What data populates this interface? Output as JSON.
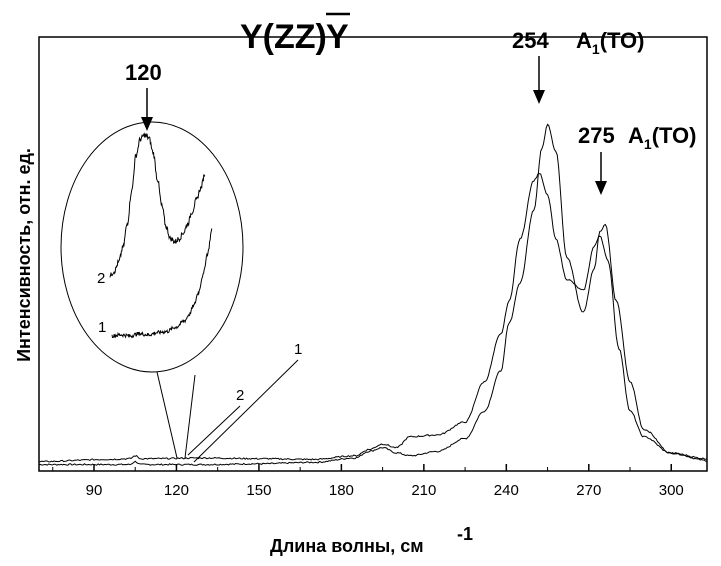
{
  "chart_data": {
    "type": "line",
    "title_main": "Y(ZZ)",
    "title_bar": "Y",
    "xlabel_main": "Длина волны, см",
    "xlabel_sup": "-1",
    "ylabel": "Интенсивность, отн. ед.",
    "xlim": [
      70,
      313
    ],
    "ylim": [
      0,
      1
    ],
    "xticks": [
      90,
      120,
      150,
      180,
      210,
      240,
      270,
      300
    ],
    "grid": false,
    "series": [
      {
        "name": "1",
        "x": [
          70,
          95,
          103,
          105,
          107,
          110,
          130,
          150,
          170,
          185,
          190,
          195,
          200,
          205,
          215,
          225,
          232,
          238,
          241,
          245,
          250,
          253,
          255,
          258,
          262,
          268,
          272,
          274,
          276,
          280,
          285,
          290,
          300,
          313
        ],
        "y": [
          0.004,
          0.004,
          0.004,
          0.012,
          0.004,
          0.004,
          0.004,
          0.006,
          0.01,
          0.022,
          0.04,
          0.05,
          0.036,
          0.028,
          0.04,
          0.075,
          0.15,
          0.26,
          0.39,
          0.5,
          0.7,
          0.87,
          0.935,
          0.86,
          0.57,
          0.42,
          0.54,
          0.64,
          0.66,
          0.45,
          0.23,
          0.1,
          0.035,
          0.015
        ]
      },
      {
        "name": "2",
        "x": [
          70,
          95,
          103,
          105,
          107,
          110,
          130,
          150,
          170,
          185,
          190,
          195,
          200,
          205,
          215,
          225,
          232,
          238,
          241,
          245,
          250,
          252,
          255,
          258,
          262,
          268,
          272,
          274,
          277,
          281,
          285,
          290,
          300,
          313
        ],
        "y": [
          0.012,
          0.018,
          0.02,
          0.028,
          0.02,
          0.02,
          0.022,
          0.02,
          0.018,
          0.028,
          0.045,
          0.06,
          0.05,
          0.08,
          0.085,
          0.12,
          0.23,
          0.36,
          0.45,
          0.62,
          0.78,
          0.8,
          0.74,
          0.62,
          0.51,
          0.48,
          0.6,
          0.63,
          0.56,
          0.32,
          0.15,
          0.08,
          0.035,
          0.02
        ]
      }
    ],
    "annotations": [
      {
        "text": "254",
        "label": "A",
        "sub": "1",
        "suffix": "(TO)"
      },
      {
        "text": "275",
        "label": "A",
        "sub": "1",
        "suffix": "(TO)"
      },
      {
        "text": "120"
      }
    ],
    "inset": {
      "curve_labels": [
        "2",
        "1"
      ],
      "series_2": {
        "x": [
          110,
          111,
          112,
          113,
          114,
          115,
          116,
          117,
          118,
          119,
          120,
          121,
          122,
          123,
          124,
          125,
          126,
          127,
          128,
          129,
          130,
          131,
          132
        ],
        "y": [
          0.05,
          0.08,
          0.14,
          0.24,
          0.4,
          0.62,
          0.86,
          0.97,
          1.0,
          0.98,
          0.88,
          0.7,
          0.52,
          0.38,
          0.3,
          0.28,
          0.3,
          0.34,
          0.4,
          0.48,
          0.56,
          0.64,
          0.74
        ]
      },
      "series_1": {
        "x": [
          110,
          112,
          114,
          116,
          118,
          120,
          122,
          124,
          126,
          127,
          128,
          129,
          130,
          131,
          132
        ],
        "y": [
          0.02,
          0.03,
          0.02,
          0.04,
          0.03,
          0.05,
          0.06,
          0.1,
          0.16,
          0.22,
          0.3,
          0.42,
          0.58,
          0.78,
          1.0
        ]
      }
    }
  }
}
